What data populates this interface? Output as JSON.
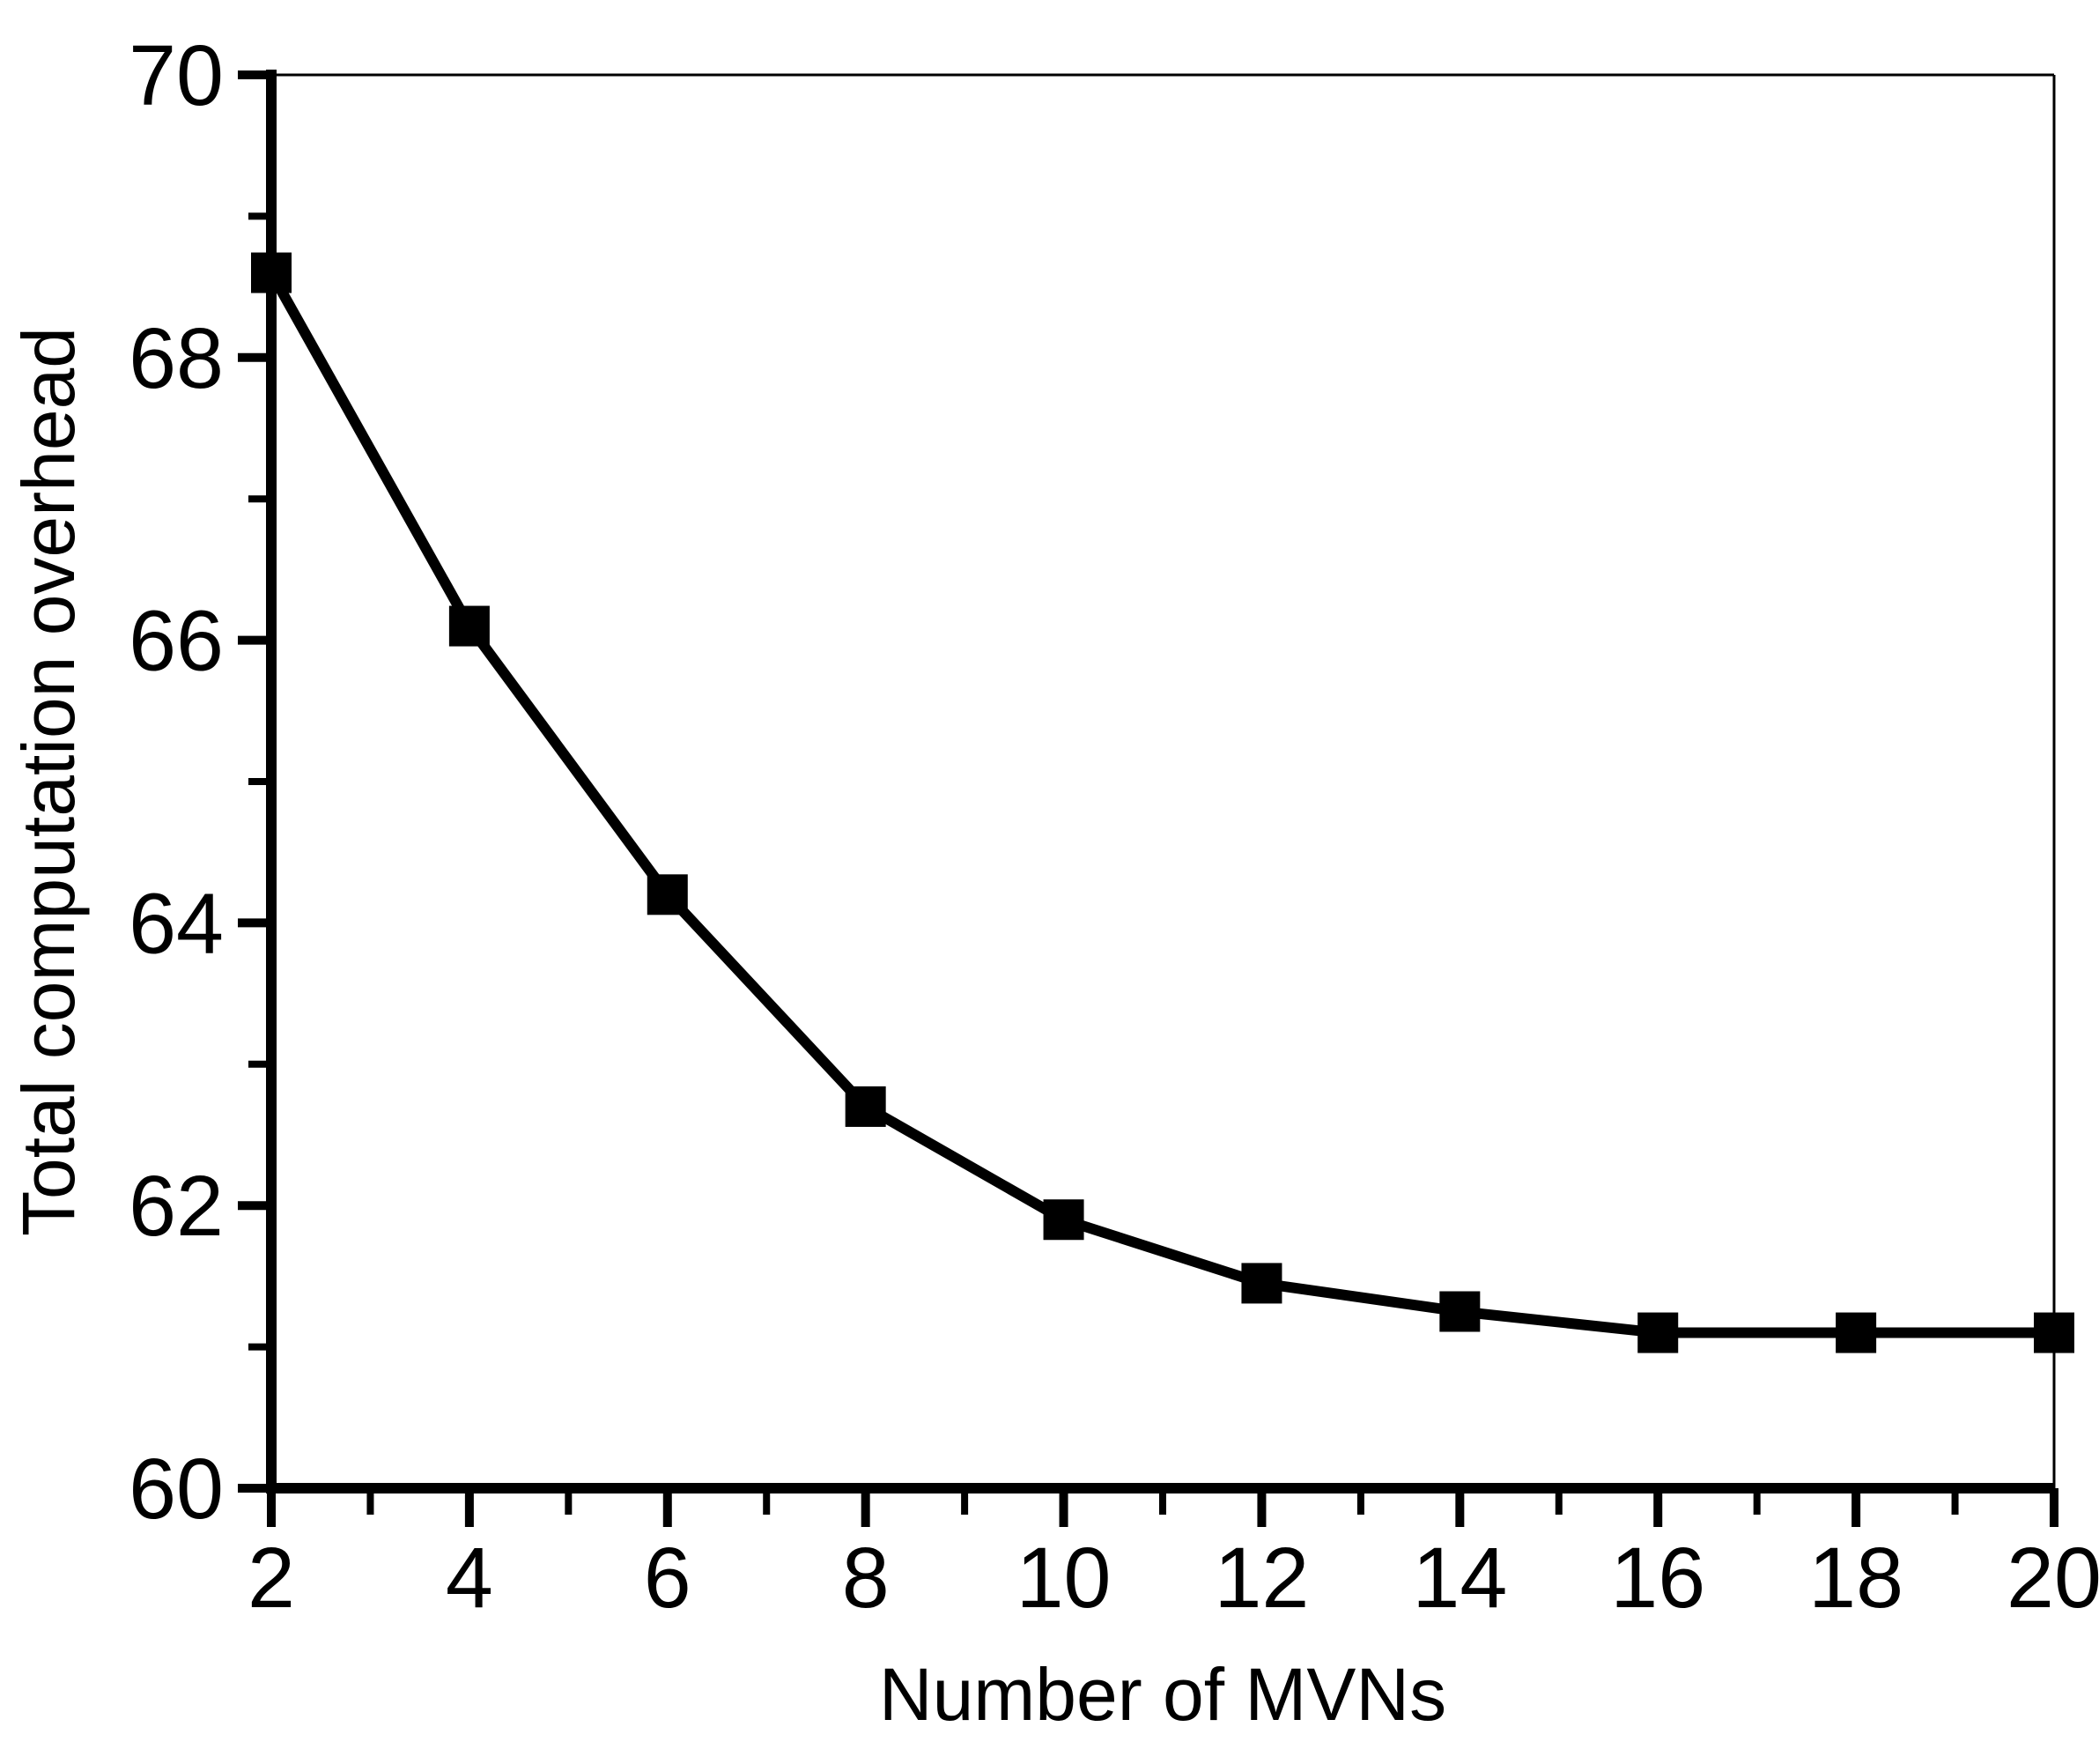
{
  "chart_data": {
    "type": "line",
    "title": "",
    "xlabel": "Number of MVNs",
    "ylabel": "Total computation overhead",
    "x": [
      2,
      4,
      6,
      8,
      10,
      12,
      14,
      16,
      18,
      20
    ],
    "series": [
      {
        "name": "Total computation overhead",
        "values": [
          68.6,
          66.1,
          64.2,
          62.7,
          61.9,
          61.45,
          61.25,
          61.1,
          61.1,
          61.1
        ]
      }
    ],
    "xlim": [
      2,
      20
    ],
    "ylim": [
      60,
      70
    ],
    "x_axis": {
      "major_ticks": [
        2,
        4,
        6,
        8,
        10,
        12,
        14,
        16,
        18,
        20
      ],
      "minor_ticks": [
        3,
        5,
        7,
        9,
        11,
        13,
        15,
        17,
        19
      ],
      "tick_labels": [
        "2",
        "4",
        "6",
        "8",
        "10",
        "12",
        "14",
        "16",
        "18",
        "20"
      ]
    },
    "y_axis": {
      "major_ticks": [
        60,
        62,
        64,
        66,
        68,
        70
      ],
      "minor_ticks": [
        61,
        63,
        65,
        67,
        69
      ],
      "tick_labels": [
        "60",
        "62",
        "64",
        "66",
        "68",
        "70"
      ]
    },
    "grid": false,
    "legend": "none",
    "marker_shape": "filled-square",
    "colors": {
      "line": "#000000",
      "marker": "#000000",
      "axis": "#000000",
      "background": "#ffffff"
    }
  }
}
